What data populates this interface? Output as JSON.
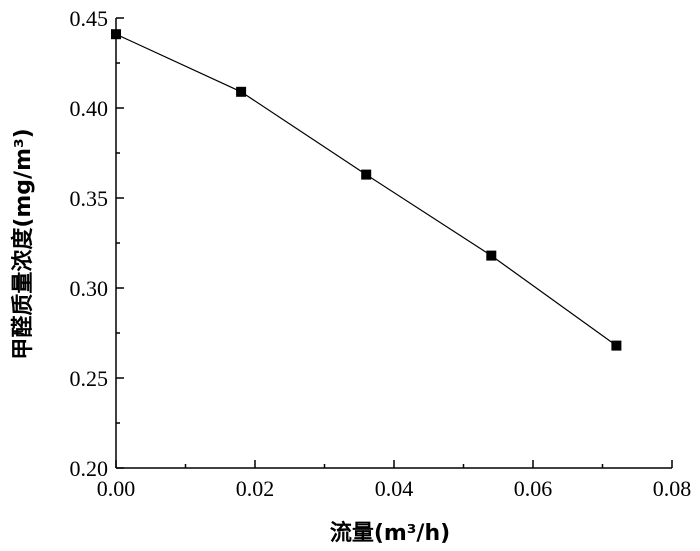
{
  "chart_data": {
    "type": "line",
    "title": "",
    "xlabel": "流量(m³/h)",
    "ylabel": "甲醛质量浓度(mg/m³)",
    "xlim": [
      0.0,
      0.08
    ],
    "ylim": [
      0.2,
      0.45
    ],
    "x_ticks": [
      "0.00",
      "0.02",
      "0.04",
      "0.06",
      "0.08"
    ],
    "y_ticks": [
      "0.20",
      "0.25",
      "0.30",
      "0.35",
      "0.40",
      "0.45"
    ],
    "grid": false,
    "series": [
      {
        "x": [
          0.0,
          0.018,
          0.036,
          0.054,
          0.072
        ],
        "y": [
          0.441,
          0.409,
          0.363,
          0.318,
          0.268
        ]
      }
    ],
    "marker": "square",
    "line_color": "#000000"
  }
}
